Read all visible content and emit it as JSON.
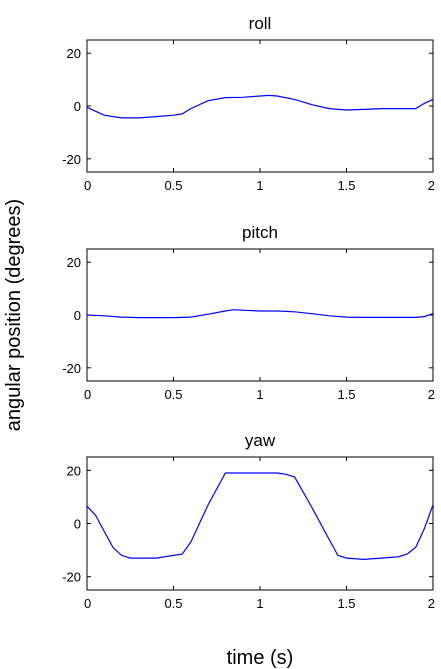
{
  "ylabel": "angular position (degrees)",
  "xlabel": "time (s)",
  "line_color": "#0000ff",
  "chart_data": [
    {
      "type": "line",
      "title": "roll",
      "xlim": [
        0,
        2
      ],
      "ylim": [
        -25,
        25
      ],
      "xticks": [
        0,
        0.5,
        1,
        1.5,
        2
      ],
      "xtick_labels": [
        "0",
        "0.5",
        "1",
        "1.5",
        "2"
      ],
      "yticks": [
        20,
        0,
        -20
      ],
      "ytick_labels": [
        "20",
        "0",
        "-20"
      ],
      "series": [
        {
          "x": [
            0,
            0.05,
            0.1,
            0.2,
            0.3,
            0.4,
            0.5,
            0.55,
            0.6,
            0.7,
            0.8,
            0.9,
            1.0,
            1.05,
            1.1,
            1.2,
            1.3,
            1.4,
            1.5,
            1.6,
            1.7,
            1.8,
            1.9,
            1.95,
            2.0
          ],
          "y": [
            -0.5,
            -2,
            -3.5,
            -4.5,
            -4.5,
            -4,
            -3.5,
            -3,
            -1,
            2,
            3.2,
            3.3,
            3.8,
            4,
            3.8,
            2.5,
            0.5,
            -1,
            -1.5,
            -1.3,
            -1,
            -1,
            -1,
            1,
            2.5
          ]
        }
      ]
    },
    {
      "type": "line",
      "title": "pitch",
      "xlim": [
        0,
        2
      ],
      "ylim": [
        -25,
        25
      ],
      "xticks": [
        0,
        0.5,
        1,
        1.5,
        2
      ],
      "xtick_labels": [
        "0",
        "0.5",
        "1",
        "1.5",
        "2"
      ],
      "yticks": [
        20,
        0,
        -20
      ],
      "ytick_labels": [
        "20",
        "0",
        "-20"
      ],
      "series": [
        {
          "x": [
            0,
            0.1,
            0.2,
            0.3,
            0.4,
            0.5,
            0.6,
            0.7,
            0.8,
            0.85,
            0.9,
            1.0,
            1.1,
            1.2,
            1.3,
            1.4,
            1.5,
            1.6,
            1.7,
            1.8,
            1.9,
            1.95,
            2.0
          ],
          "y": [
            0,
            -0.3,
            -0.8,
            -1,
            -1,
            -1,
            -0.8,
            0.3,
            1.5,
            2,
            1.8,
            1.5,
            1.5,
            1.2,
            0.5,
            -0.3,
            -0.8,
            -0.9,
            -0.9,
            -0.9,
            -0.9,
            -0.6,
            0.5
          ]
        }
      ]
    },
    {
      "type": "line",
      "title": "yaw",
      "xlim": [
        0,
        2
      ],
      "ylim": [
        -25,
        25
      ],
      "xticks": [
        0,
        0.5,
        1,
        1.5,
        2
      ],
      "xtick_labels": [
        "0",
        "0.5",
        "1",
        "1.5",
        "2"
      ],
      "yticks": [
        20,
        0,
        -20
      ],
      "ytick_labels": [
        "20",
        "0",
        "-20"
      ],
      "series": [
        {
          "x": [
            0,
            0.05,
            0.1,
            0.15,
            0.2,
            0.25,
            0.3,
            0.4,
            0.5,
            0.55,
            0.6,
            0.7,
            0.8,
            0.85,
            0.9,
            1.0,
            1.1,
            1.15,
            1.2,
            1.3,
            1.4,
            1.45,
            1.5,
            1.6,
            1.7,
            1.8,
            1.85,
            1.9,
            1.95,
            2.0
          ],
          "y": [
            6.5,
            3,
            -3,
            -9,
            -12,
            -13,
            -13,
            -13,
            -12,
            -11.5,
            -7,
            7,
            19,
            19,
            19,
            19,
            19,
            18.5,
            17.5,
            6,
            -6,
            -12,
            -13,
            -13.5,
            -13,
            -12.5,
            -11.5,
            -9,
            -2,
            7
          ]
        }
      ]
    }
  ]
}
